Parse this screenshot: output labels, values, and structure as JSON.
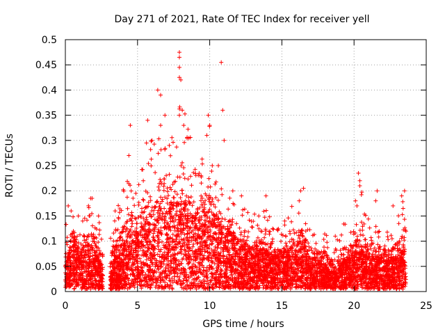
{
  "chart_data": {
    "type": "scatter",
    "title": "Day 271 of 2021, Rate Of TEC Index for receiver yell",
    "xlabel": "GPS time / hours",
    "ylabel": "ROTI / TECUs",
    "xlim": [
      0,
      25
    ],
    "ylim": [
      0,
      0.5
    ],
    "xticks": [
      0,
      5,
      10,
      15,
      20,
      25
    ],
    "yticks": [
      0,
      0.05,
      0.1,
      0.15,
      0.2,
      0.25,
      0.3,
      0.35,
      0.4,
      0.45,
      0.5
    ],
    "grid": true,
    "marker": "+",
    "color": "#ff0000",
    "series": [
      {
        "name": "ROTI",
        "data_segments_hours": [
          [
            0.0,
            2.6
          ],
          [
            3.1,
            23.6
          ]
        ],
        "envelope": {
          "x": [
            0,
            0.5,
            1,
            1.5,
            2,
            2.5,
            3.2,
            4,
            4.5,
            5,
            5.5,
            6,
            6.5,
            7,
            7.5,
            8,
            8.5,
            9,
            9.5,
            10,
            10.5,
            11,
            11.5,
            12,
            12.5,
            13,
            13.5,
            14,
            14.5,
            15,
            15.5,
            16,
            16.5,
            17,
            17.5,
            18,
            18.5,
            19,
            19.5,
            20,
            20.5,
            21,
            21.5,
            22,
            22.5,
            23,
            23.5
          ],
          "upper": [
            0.13,
            0.17,
            0.15,
            0.16,
            0.18,
            0.12,
            0.12,
            0.2,
            0.24,
            0.2,
            0.3,
            0.3,
            0.32,
            0.36,
            0.3,
            0.4,
            0.34,
            0.25,
            0.26,
            0.33,
            0.22,
            0.2,
            0.2,
            0.15,
            0.18,
            0.15,
            0.16,
            0.18,
            0.12,
            0.13,
            0.15,
            0.2,
            0.18,
            0.12,
            0.11,
            0.12,
            0.09,
            0.13,
            0.13,
            0.14,
            0.2,
            0.14,
            0.15,
            0.12,
            0.12,
            0.15,
            0.2
          ],
          "median": [
            0.03,
            0.07,
            0.05,
            0.06,
            0.05,
            0.03,
            0.03,
            0.05,
            0.08,
            0.07,
            0.09,
            0.08,
            0.1,
            0.1,
            0.11,
            0.12,
            0.1,
            0.09,
            0.09,
            0.1,
            0.09,
            0.08,
            0.07,
            0.06,
            0.06,
            0.05,
            0.05,
            0.05,
            0.04,
            0.05,
            0.05,
            0.06,
            0.06,
            0.04,
            0.04,
            0.03,
            0.02,
            0.03,
            0.04,
            0.04,
            0.05,
            0.04,
            0.04,
            0.04,
            0.04,
            0.04,
            0.05
          ]
        },
        "outliers": [
          [
            0.2,
            0.17
          ],
          [
            0.4,
            0.16
          ],
          [
            0.9,
            0.15
          ],
          [
            1.2,
            0.14
          ],
          [
            1.6,
            0.17
          ],
          [
            1.75,
            0.185
          ],
          [
            1.85,
            0.185
          ],
          [
            2.3,
            0.15
          ],
          [
            3.45,
            0.16
          ],
          [
            3.3,
            0.09
          ],
          [
            4.4,
            0.27
          ],
          [
            4.5,
            0.33
          ],
          [
            5.2,
            0.15
          ],
          [
            5.4,
            0.22
          ],
          [
            5.7,
            0.34
          ],
          [
            6.0,
            0.3
          ],
          [
            6.4,
            0.4
          ],
          [
            6.6,
            0.39
          ],
          [
            6.6,
            0.33
          ],
          [
            6.9,
            0.35
          ],
          [
            7.2,
            0.29
          ],
          [
            7.9,
            0.475
          ],
          [
            7.9,
            0.465
          ],
          [
            7.9,
            0.445
          ],
          [
            7.9,
            0.425
          ],
          [
            8.0,
            0.42
          ],
          [
            8.1,
            0.36
          ],
          [
            7.9,
            0.35
          ],
          [
            8.2,
            0.33
          ],
          [
            9.9,
            0.35
          ],
          [
            10.0,
            0.33
          ],
          [
            9.8,
            0.31
          ],
          [
            10.8,
            0.455
          ],
          [
            10.9,
            0.36
          ],
          [
            11.0,
            0.3
          ],
          [
            10.6,
            0.25
          ],
          [
            11.6,
            0.2
          ],
          [
            12.2,
            0.19
          ],
          [
            13.9,
            0.19
          ],
          [
            15.2,
            0.14
          ],
          [
            16.3,
            0.2
          ],
          [
            16.5,
            0.205
          ],
          [
            16.2,
            0.18
          ],
          [
            18.7,
            0.11
          ],
          [
            20.3,
            0.235
          ],
          [
            20.4,
            0.22
          ],
          [
            20.4,
            0.21
          ],
          [
            20.1,
            0.18
          ],
          [
            20.2,
            0.17
          ],
          [
            21.6,
            0.2
          ],
          [
            21.5,
            0.18
          ],
          [
            22.7,
            0.17
          ],
          [
            23.3,
            0.19
          ],
          [
            23.5,
            0.2
          ],
          [
            23.4,
            0.165
          ],
          [
            23.1,
            0.135
          ]
        ]
      }
    ]
  }
}
